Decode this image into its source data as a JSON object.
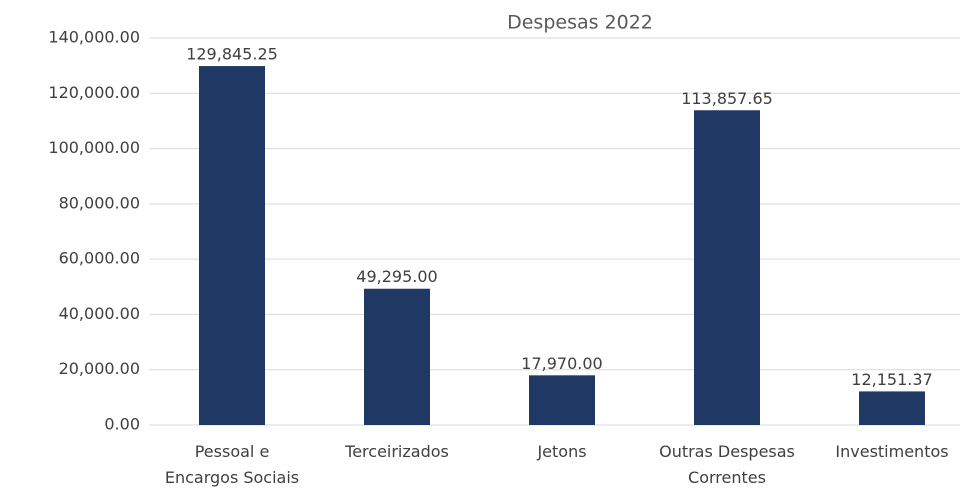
{
  "chart_data": {
    "type": "bar",
    "title": "Despesas 2022",
    "categories": [
      "Pessoal e\nEncargos Sociais",
      "Terceirizados",
      "Jetons",
      "Outras Despesas\nCorrentes",
      "Investimentos"
    ],
    "values": [
      129845.25,
      49295.0,
      17970.0,
      113857.65,
      12151.37
    ],
    "value_labels": [
      "129,845.25",
      "49,295.00",
      "17,970.00",
      "113,857.65",
      "12,151.37"
    ],
    "color": "#1f3864",
    "ylim": [
      0,
      140000
    ],
    "yticks": [
      {
        "value": 0,
        "label": "0.00"
      },
      {
        "value": 20000,
        "label": "20,000.00"
      },
      {
        "value": 40000,
        "label": "40,000.00"
      },
      {
        "value": 60000,
        "label": "60,000.00"
      },
      {
        "value": 80000,
        "label": "80,000.00"
      },
      {
        "value": 100000,
        "label": "100,000.00"
      },
      {
        "value": 120000,
        "label": "120,000.00"
      },
      {
        "value": 140000,
        "label": "140,000.00"
      }
    ],
    "grid": true
  }
}
